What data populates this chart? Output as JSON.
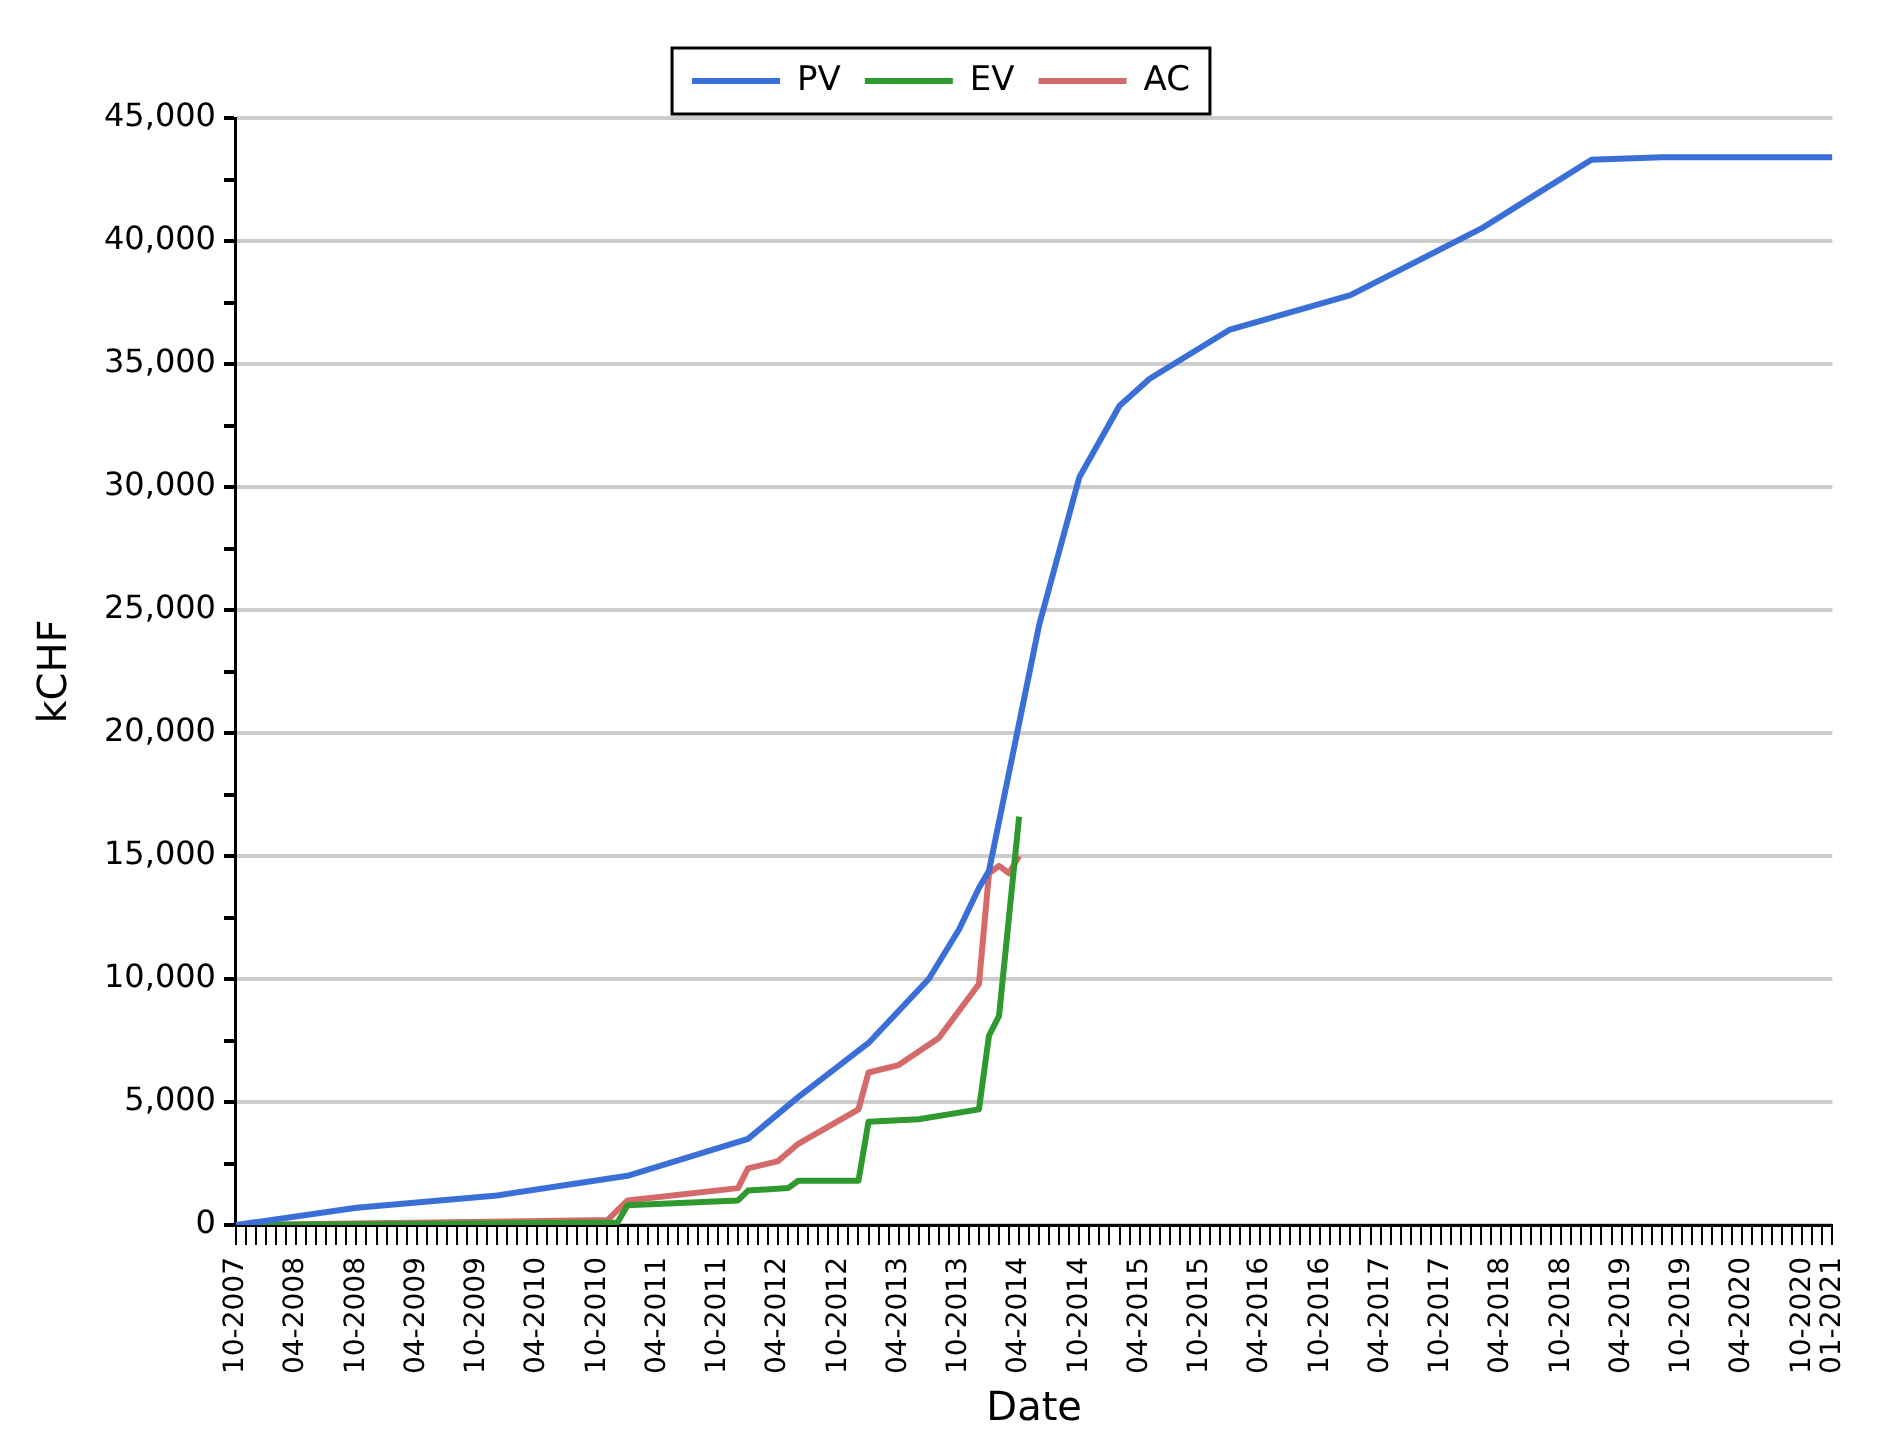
{
  "chart_data": {
    "type": "line",
    "xlabel": "Date",
    "ylabel": "kCHF",
    "legend": "top",
    "grid": "y",
    "marker": "none",
    "line_style": "solid",
    "xlim": [
      "2007-10",
      "2021-01"
    ],
    "ylim": [
      0,
      45000
    ],
    "yticks": [
      {
        "value": 0,
        "label": "0"
      },
      {
        "value": 2500,
        "label": null
      },
      {
        "value": 5000,
        "label": "5,000"
      },
      {
        "value": 7500,
        "label": null
      },
      {
        "value": 10000,
        "label": "10,000"
      },
      {
        "value": 12500,
        "label": null
      },
      {
        "value": 15000,
        "label": "15,000"
      },
      {
        "value": 17500,
        "label": null
      },
      {
        "value": 20000,
        "label": "20,000"
      },
      {
        "value": 22500,
        "label": null
      },
      {
        "value": 25000,
        "label": "25,000"
      },
      {
        "value": 27500,
        "label": null
      },
      {
        "value": 30000,
        "label": "30,000"
      },
      {
        "value": 32500,
        "label": null
      },
      {
        "value": 35000,
        "label": "35,000"
      },
      {
        "value": 37500,
        "label": null
      },
      {
        "value": 40000,
        "label": "40,000"
      },
      {
        "value": 42500,
        "label": null
      },
      {
        "value": 45000,
        "label": "45,000"
      }
    ],
    "xticks": [
      {
        "value": "2007-10",
        "label": "10-2007"
      },
      {
        "value": "2007-11",
        "label": null
      },
      {
        "value": "2007-12",
        "label": null
      },
      {
        "value": "2008-01",
        "label": null
      },
      {
        "value": "2008-02",
        "label": null
      },
      {
        "value": "2008-03",
        "label": null
      },
      {
        "value": "2008-04",
        "label": "04-2008"
      },
      {
        "value": "2008-05",
        "label": null
      },
      {
        "value": "2008-06",
        "label": null
      },
      {
        "value": "2008-07",
        "label": null
      },
      {
        "value": "2008-08",
        "label": null
      },
      {
        "value": "2008-09",
        "label": null
      },
      {
        "value": "2008-10",
        "label": "10-2008"
      },
      {
        "value": "2008-11",
        "label": null
      },
      {
        "value": "2008-12",
        "label": null
      },
      {
        "value": "2009-01",
        "label": null
      },
      {
        "value": "2009-02",
        "label": null
      },
      {
        "value": "2009-03",
        "label": null
      },
      {
        "value": "2009-04",
        "label": "04-2009"
      },
      {
        "value": "2009-05",
        "label": null
      },
      {
        "value": "2009-06",
        "label": null
      },
      {
        "value": "2009-07",
        "label": null
      },
      {
        "value": "2009-08",
        "label": null
      },
      {
        "value": "2009-09",
        "label": null
      },
      {
        "value": "2009-10",
        "label": "10-2009"
      },
      {
        "value": "2009-11",
        "label": null
      },
      {
        "value": "2009-12",
        "label": null
      },
      {
        "value": "2010-01",
        "label": null
      },
      {
        "value": "2010-02",
        "label": null
      },
      {
        "value": "2010-03",
        "label": null
      },
      {
        "value": "2010-04",
        "label": "04-2010"
      },
      {
        "value": "2010-05",
        "label": null
      },
      {
        "value": "2010-06",
        "label": null
      },
      {
        "value": "2010-07",
        "label": null
      },
      {
        "value": "2010-08",
        "label": null
      },
      {
        "value": "2010-09",
        "label": null
      },
      {
        "value": "2010-10",
        "label": "10-2010"
      },
      {
        "value": "2010-11",
        "label": null
      },
      {
        "value": "2010-12",
        "label": null
      },
      {
        "value": "2011-01",
        "label": null
      },
      {
        "value": "2011-02",
        "label": null
      },
      {
        "value": "2011-03",
        "label": null
      },
      {
        "value": "2011-04",
        "label": "04-2011"
      },
      {
        "value": "2011-05",
        "label": null
      },
      {
        "value": "2011-06",
        "label": null
      },
      {
        "value": "2011-07",
        "label": null
      },
      {
        "value": "2011-08",
        "label": null
      },
      {
        "value": "2011-09",
        "label": null
      },
      {
        "value": "2011-10",
        "label": "10-2011"
      },
      {
        "value": "2011-11",
        "label": null
      },
      {
        "value": "2011-12",
        "label": null
      },
      {
        "value": "2012-01",
        "label": null
      },
      {
        "value": "2012-02",
        "label": null
      },
      {
        "value": "2012-03",
        "label": null
      },
      {
        "value": "2012-04",
        "label": "04-2012"
      },
      {
        "value": "2012-05",
        "label": null
      },
      {
        "value": "2012-06",
        "label": null
      },
      {
        "value": "2012-07",
        "label": null
      },
      {
        "value": "2012-08",
        "label": null
      },
      {
        "value": "2012-09",
        "label": null
      },
      {
        "value": "2012-10",
        "label": "10-2012"
      },
      {
        "value": "2012-11",
        "label": null
      },
      {
        "value": "2012-12",
        "label": null
      },
      {
        "value": "2013-01",
        "label": null
      },
      {
        "value": "2013-02",
        "label": null
      },
      {
        "value": "2013-03",
        "label": null
      },
      {
        "value": "2013-04",
        "label": "04-2013"
      },
      {
        "value": "2013-05",
        "label": null
      },
      {
        "value": "2013-06",
        "label": null
      },
      {
        "value": "2013-07",
        "label": null
      },
      {
        "value": "2013-08",
        "label": null
      },
      {
        "value": "2013-09",
        "label": null
      },
      {
        "value": "2013-10",
        "label": "10-2013"
      },
      {
        "value": "2013-11",
        "label": null
      },
      {
        "value": "2013-12",
        "label": null
      },
      {
        "value": "2014-01",
        "label": null
      },
      {
        "value": "2014-02",
        "label": null
      },
      {
        "value": "2014-03",
        "label": null
      },
      {
        "value": "2014-04",
        "label": "04-2014"
      },
      {
        "value": "2014-05",
        "label": null
      },
      {
        "value": "2014-06",
        "label": null
      },
      {
        "value": "2014-07",
        "label": null
      },
      {
        "value": "2014-08",
        "label": null
      },
      {
        "value": "2014-09",
        "label": null
      },
      {
        "value": "2014-10",
        "label": "10-2014"
      },
      {
        "value": "2014-11",
        "label": null
      },
      {
        "value": "2014-12",
        "label": null
      },
      {
        "value": "2015-01",
        "label": null
      },
      {
        "value": "2015-02",
        "label": null
      },
      {
        "value": "2015-03",
        "label": null
      },
      {
        "value": "2015-04",
        "label": "04-2015"
      },
      {
        "value": "2015-05",
        "label": null
      },
      {
        "value": "2015-06",
        "label": null
      },
      {
        "value": "2015-07",
        "label": null
      },
      {
        "value": "2015-08",
        "label": null
      },
      {
        "value": "2015-09",
        "label": null
      },
      {
        "value": "2015-10",
        "label": "10-2015"
      },
      {
        "value": "2015-11",
        "label": null
      },
      {
        "value": "2015-12",
        "label": null
      },
      {
        "value": "2016-01",
        "label": null
      },
      {
        "value": "2016-02",
        "label": null
      },
      {
        "value": "2016-03",
        "label": null
      },
      {
        "value": "2016-04",
        "label": "04-2016"
      },
      {
        "value": "2016-05",
        "label": null
      },
      {
        "value": "2016-06",
        "label": null
      },
      {
        "value": "2016-07",
        "label": null
      },
      {
        "value": "2016-08",
        "label": null
      },
      {
        "value": "2016-09",
        "label": null
      },
      {
        "value": "2016-10",
        "label": "10-2016"
      },
      {
        "value": "2016-11",
        "label": null
      },
      {
        "value": "2016-12",
        "label": null
      },
      {
        "value": "2017-01",
        "label": null
      },
      {
        "value": "2017-02",
        "label": null
      },
      {
        "value": "2017-03",
        "label": null
      },
      {
        "value": "2017-04",
        "label": "04-2017"
      },
      {
        "value": "2017-05",
        "label": null
      },
      {
        "value": "2017-06",
        "label": null
      },
      {
        "value": "2017-07",
        "label": null
      },
      {
        "value": "2017-08",
        "label": null
      },
      {
        "value": "2017-09",
        "label": null
      },
      {
        "value": "2017-10",
        "label": "10-2017"
      },
      {
        "value": "2017-11",
        "label": null
      },
      {
        "value": "2017-12",
        "label": null
      },
      {
        "value": "2018-01",
        "label": null
      },
      {
        "value": "2018-02",
        "label": null
      },
      {
        "value": "2018-03",
        "label": null
      },
      {
        "value": "2018-04",
        "label": "04-2018"
      },
      {
        "value": "2018-05",
        "label": null
      },
      {
        "value": "2018-06",
        "label": null
      },
      {
        "value": "2018-07",
        "label": null
      },
      {
        "value": "2018-08",
        "label": null
      },
      {
        "value": "2018-09",
        "label": null
      },
      {
        "value": "2018-10",
        "label": "10-2018"
      },
      {
        "value": "2018-11",
        "label": null
      },
      {
        "value": "2018-12",
        "label": null
      },
      {
        "value": "2019-01",
        "label": null
      },
      {
        "value": "2019-02",
        "label": null
      },
      {
        "value": "2019-03",
        "label": null
      },
      {
        "value": "2019-04",
        "label": "04-2019"
      },
      {
        "value": "2019-05",
        "label": null
      },
      {
        "value": "2019-06",
        "label": null
      },
      {
        "value": "2019-07",
        "label": null
      },
      {
        "value": "2019-08",
        "label": null
      },
      {
        "value": "2019-09",
        "label": null
      },
      {
        "value": "2019-10",
        "label": "10-2019"
      },
      {
        "value": "2019-11",
        "label": null
      },
      {
        "value": "2019-12",
        "label": null
      },
      {
        "value": "2020-01",
        "label": null
      },
      {
        "value": "2020-02",
        "label": null
      },
      {
        "value": "2020-03",
        "label": null
      },
      {
        "value": "2020-04",
        "label": "04-2020"
      },
      {
        "value": "2020-05",
        "label": null
      },
      {
        "value": "2020-06",
        "label": null
      },
      {
        "value": "2020-07",
        "label": null
      },
      {
        "value": "2020-08",
        "label": null
      },
      {
        "value": "2020-09",
        "label": null
      },
      {
        "value": "2020-10",
        "label": "10-2020"
      },
      {
        "value": "2020-11",
        "label": null
      },
      {
        "value": "2020-12",
        "label": null
      },
      {
        "value": "2021-01",
        "label": "01-2021"
      }
    ],
    "series": [
      {
        "name": "PV",
        "color": "#3a6fd8",
        "x": [
          "2007-10",
          "2008-10",
          "2009-12",
          "2011-01",
          "2012-01",
          "2012-06",
          "2013-01",
          "2013-07",
          "2013-10",
          "2013-12",
          "2014-01",
          "2014-04",
          "2014-06",
          "2014-10",
          "2015-02",
          "2015-05",
          "2016-01",
          "2017-01",
          "2018-02",
          "2019-01",
          "2019-08",
          "2021-01"
        ],
        "values": [
          0,
          700,
          1200,
          2000,
          3500,
          5200,
          7400,
          10000,
          12000,
          13700,
          14400,
          20400,
          24400,
          30400,
          33300,
          34400,
          36400,
          37800,
          40500,
          43300,
          43400,
          43400
        ]
      },
      {
        "name": "EV",
        "color": "#2e9a2e",
        "x": [
          "2007-10",
          "2010-12",
          "2011-01",
          "2011-12",
          "2012-01",
          "2012-05",
          "2012-06",
          "2012-12",
          "2013-01",
          "2013-06",
          "2013-12",
          "2014-01",
          "2014-02",
          "2014-04"
        ],
        "values": [
          0,
          100,
          800,
          1000,
          1400,
          1500,
          1800,
          1800,
          4200,
          4300,
          4700,
          7700,
          8500,
          16600
        ]
      },
      {
        "name": "AC",
        "color": "#d46a6a",
        "x": [
          "2007-10",
          "2010-11",
          "2011-01",
          "2011-12",
          "2012-01",
          "2012-04",
          "2012-06",
          "2012-12",
          "2013-01",
          "2013-04",
          "2013-08",
          "2013-12",
          "2014-01",
          "2014-02",
          "2014-03",
          "2014-04"
        ],
        "values": [
          0,
          200,
          1000,
          1500,
          2300,
          2600,
          3300,
          4700,
          6200,
          6500,
          7600,
          9800,
          14300,
          14600,
          14300,
          15000
        ]
      }
    ]
  }
}
